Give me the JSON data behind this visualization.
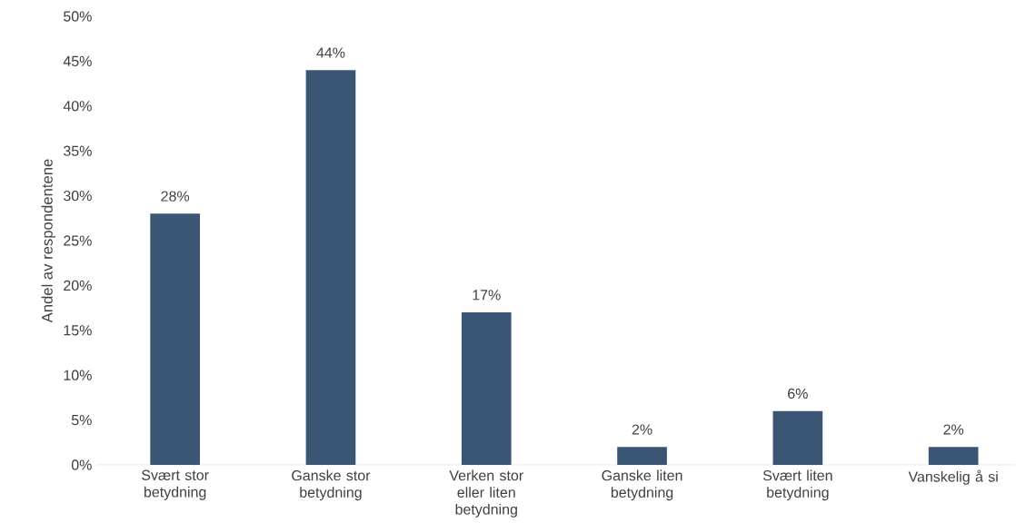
{
  "chart_data": {
    "type": "bar",
    "ylabel": "Andel av respondentene",
    "categories": [
      "Svært stor betydning",
      "Ganske stor betydning",
      "Verken stor eller liten betydning",
      "Ganske liten betydning",
      "Svært liten betydning",
      "Vanskelig å si"
    ],
    "values": [
      28,
      44,
      17,
      2,
      6,
      2
    ],
    "value_labels": [
      "28%",
      "44%",
      "17%",
      "2%",
      "6%",
      "2%"
    ],
    "color": "#3a5674",
    "ylim": [
      0,
      50
    ],
    "yticks": [
      {
        "value": 0,
        "label": "0%"
      },
      {
        "value": 5,
        "label": "5%"
      },
      {
        "value": 10,
        "label": "10%"
      },
      {
        "value": 15,
        "label": "15%"
      },
      {
        "value": 20,
        "label": "20%"
      },
      {
        "value": 25,
        "label": "25%"
      },
      {
        "value": 30,
        "label": "30%"
      },
      {
        "value": 35,
        "label": "35%"
      },
      {
        "value": 40,
        "label": "40%"
      },
      {
        "value": 45,
        "label": "45%"
      },
      {
        "value": 50,
        "label": "50%"
      }
    ]
  }
}
